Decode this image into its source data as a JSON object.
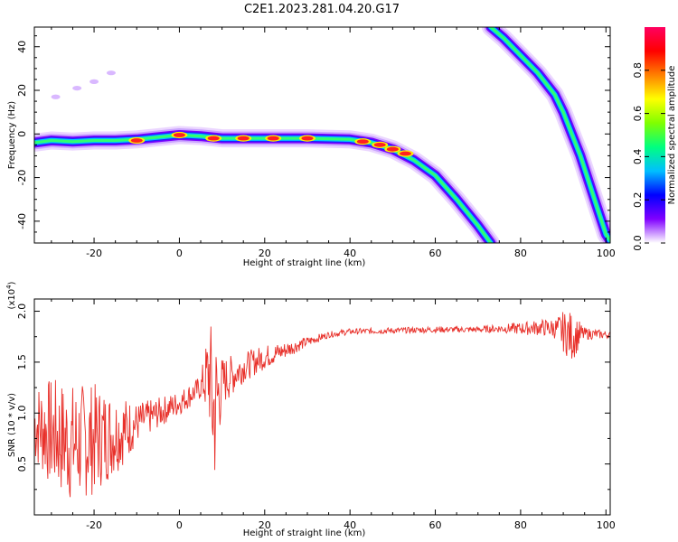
{
  "figure": {
    "title": "C2E1.2023.281.04.20.G17"
  },
  "chart_data": [
    {
      "type": "heatmap",
      "title": "C2E1.2023.281.04.20.G17",
      "xlabel": "Height of straight line (km)",
      "ylabel": "Frequency (Hz)",
      "xlim": [
        -34,
        101
      ],
      "ylim": [
        -50,
        49
      ],
      "x_ticks": [
        -20,
        0,
        20,
        40,
        60,
        80,
        100
      ],
      "y_ticks": [
        -40,
        -20,
        0,
        20,
        40
      ],
      "colorbar": {
        "label": "Normalized spectral amplitude",
        "range": [
          0,
          1
        ],
        "ticks": [
          0.0,
          0.2,
          0.4,
          0.6,
          0.8
        ],
        "colors": [
          "#ffffff",
          "#8000ff",
          "#0000ff",
          "#00bfff",
          "#00ff80",
          "#80ff00",
          "#ffff00",
          "#ff8000",
          "#ff0000",
          "#ff0060"
        ]
      },
      "ridges": [
        {
          "points": [
            [
              -34,
              -4
            ],
            [
              -30,
              -3
            ],
            [
              -25,
              -3.5
            ],
            [
              -20,
              -3
            ],
            [
              -15,
              -3
            ],
            [
              -10,
              -2.5
            ],
            [
              -5,
              -1.5
            ],
            [
              0,
              -0.5
            ],
            [
              5,
              -1
            ],
            [
              10,
              -2
            ],
            [
              20,
              -2
            ],
            [
              30,
              -2
            ],
            [
              40,
              -2.5
            ],
            [
              45,
              -4
            ],
            [
              50,
              -7
            ],
            [
              55,
              -12
            ],
            [
              60,
              -19
            ],
            [
              65,
              -30
            ],
            [
              70,
              -42
            ],
            [
              73,
              -50
            ]
          ],
          "peaks": [
            [
              -10,
              -3
            ],
            [
              0,
              -0.5
            ],
            [
              8,
              -2
            ],
            [
              15,
              -2
            ],
            [
              22,
              -2
            ],
            [
              30,
              -2
            ],
            [
              43,
              -3.5
            ],
            [
              47,
              -5
            ],
            [
              50,
              -7
            ],
            [
              53,
              -9
            ]
          ]
        },
        {
          "points": [
            [
              73,
              49
            ],
            [
              76,
              44
            ],
            [
              80,
              36
            ],
            [
              84,
              28
            ],
            [
              88,
              18
            ],
            [
              90,
              10
            ],
            [
              92,
              0
            ],
            [
              94,
              -10
            ],
            [
              96,
              -22
            ],
            [
              98,
              -34
            ],
            [
              100,
              -46
            ],
            [
              101,
              -49
            ]
          ]
        }
      ],
      "faint_points": [
        [
          -29,
          17
        ],
        [
          -24,
          21
        ],
        [
          -20,
          24
        ],
        [
          -16,
          28
        ]
      ]
    },
    {
      "type": "line",
      "xlabel": "Height of straight line (km)",
      "ylabel": "SNR (10 * v/v)",
      "y_multiplier": "(x10^4)",
      "xlim": [
        -34,
        101
      ],
      "ylim": [
        0,
        2.12
      ],
      "x_ticks": [
        -20,
        0,
        20,
        40,
        60,
        80,
        100
      ],
      "y_ticks": [
        0.5,
        1.0,
        1.5,
        2.0
      ],
      "series": [
        {
          "color": "#e8302a",
          "envelope": {
            "x": [
              -34,
              -30,
              -25,
              -20,
              -15,
              -12,
              -10,
              -5,
              0,
              5,
              7,
              8,
              10,
              15,
              20,
              25,
              30,
              35,
              40,
              50,
              60,
              70,
              75,
              80,
              85,
              88,
              90,
              92,
              95,
              100,
              101
            ],
            "center": [
              0.9,
              0.8,
              0.7,
              0.75,
              0.8,
              0.85,
              0.9,
              1.0,
              1.1,
              1.25,
              1.4,
              1.0,
              1.3,
              1.45,
              1.55,
              1.62,
              1.7,
              1.77,
              1.8,
              1.81,
              1.82,
              1.82,
              1.83,
              1.83,
              1.84,
              1.83,
              1.8,
              1.75,
              1.78,
              1.77,
              1.77
            ],
            "noise": [
              0.4,
              0.55,
              0.6,
              0.55,
              0.4,
              0.3,
              0.2,
              0.15,
              0.12,
              0.12,
              0.5,
              0.9,
              0.25,
              0.15,
              0.12,
              0.08,
              0.05,
              0.03,
              0.03,
              0.03,
              0.03,
              0.03,
              0.04,
              0.06,
              0.08,
              0.1,
              0.2,
              0.25,
              0.06,
              0.04,
              0.03
            ]
          }
        }
      ]
    }
  ]
}
